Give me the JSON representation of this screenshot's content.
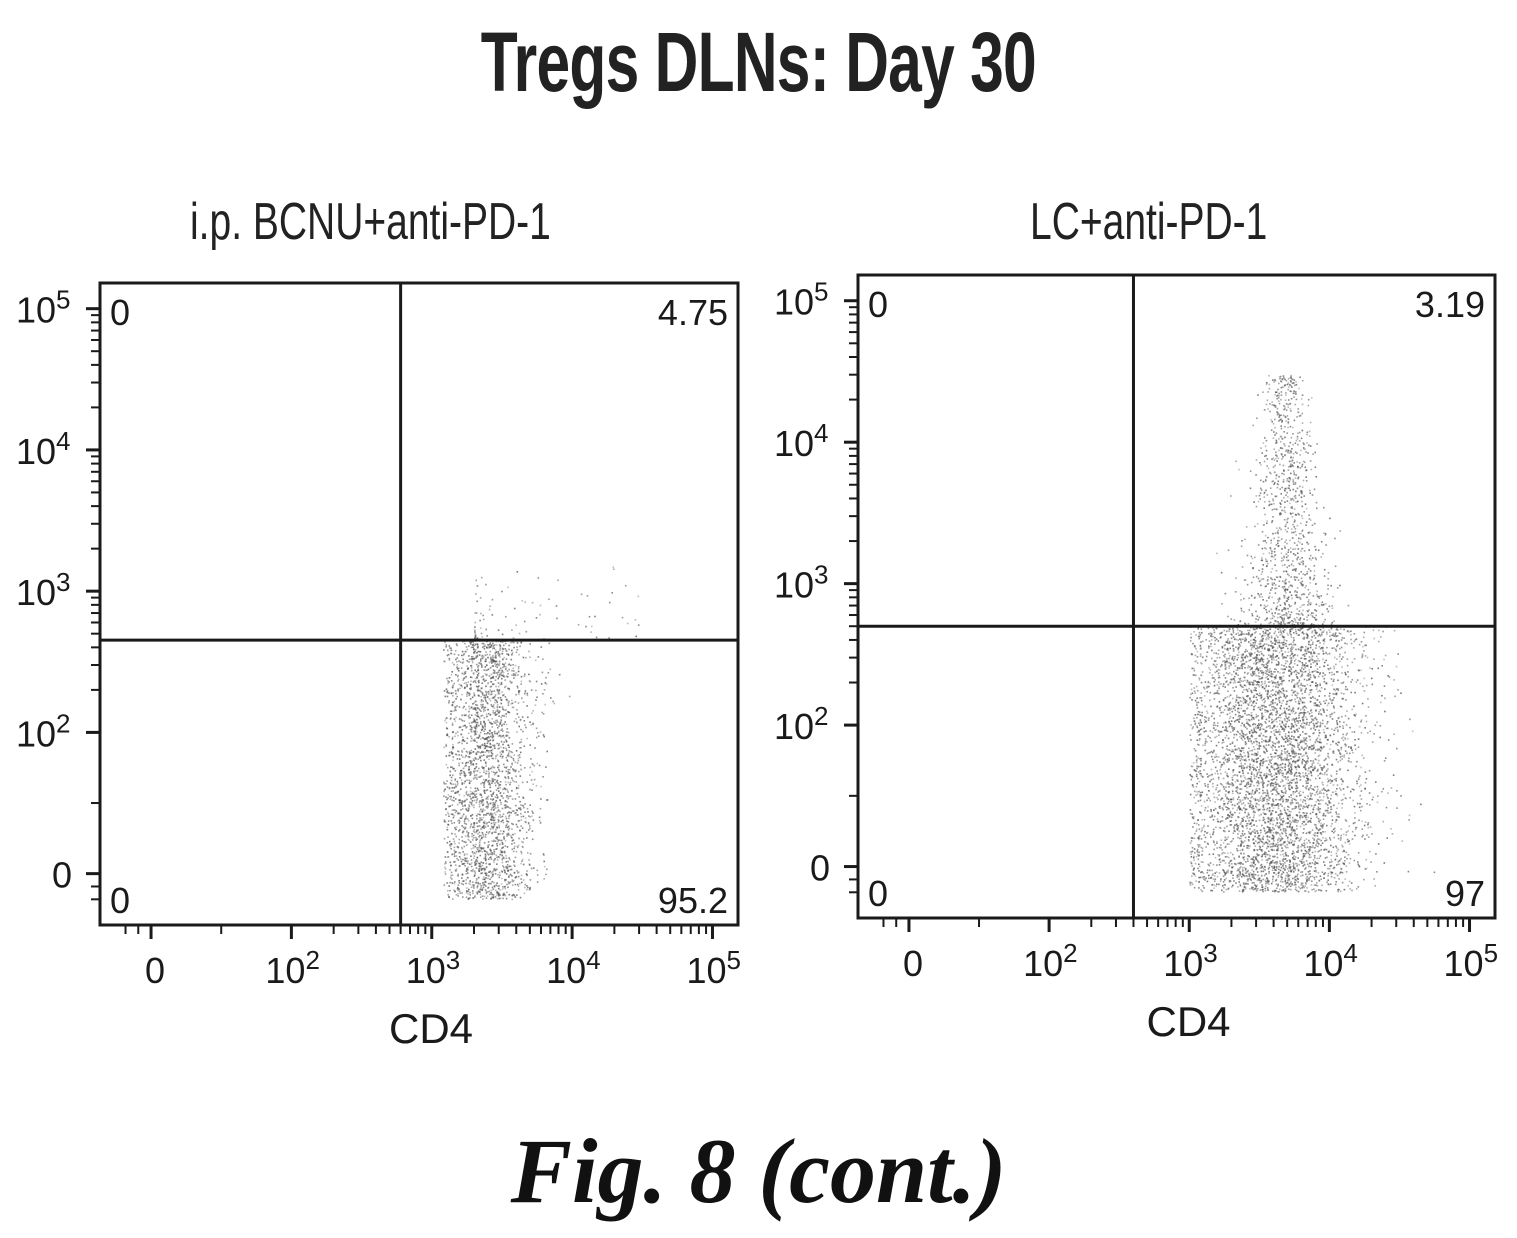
{
  "figure": {
    "title": "Tregs DLNs: Day 30",
    "caption": "Fig. 8 (cont.)"
  },
  "chart_data": [
    {
      "type": "scatter",
      "subtype": "flow-cytometry-quadrant-dot-plot",
      "title": "i.p. BCNU+anti-PD-1",
      "xlabel": "CD4",
      "ylabel": "",
      "x_scale": "biexponential (logicle)",
      "y_scale": "biexponential (logicle)",
      "x_ticks": [
        {
          "base": "0",
          "exp": ""
        },
        {
          "base": "10",
          "exp": "2"
        },
        {
          "base": "10",
          "exp": "3"
        },
        {
          "base": "10",
          "exp": "4"
        },
        {
          "base": "10",
          "exp": "5"
        }
      ],
      "y_ticks": [
        {
          "base": "0",
          "exp": ""
        },
        {
          "base": "10",
          "exp": "2"
        },
        {
          "base": "10",
          "exp": "3"
        },
        {
          "base": "10",
          "exp": "4"
        },
        {
          "base": "10",
          "exp": "5"
        }
      ],
      "quadrant_gate": {
        "x": 600,
        "y": 450
      },
      "quadrants": {
        "upper_left": "0",
        "upper_right": "4.75",
        "lower_left": "0",
        "lower_right": "95.2"
      },
      "populations": [
        {
          "x_range": [
            1200,
            6000
          ],
          "y_range": [
            -150,
            450
          ],
          "density": "high",
          "description": "CD4+ main population, lower-right"
        },
        {
          "x_range": [
            2000,
            30000
          ],
          "y_range": [
            450,
            1500
          ],
          "density": "sparse",
          "description": "few events above gate"
        }
      ]
    },
    {
      "type": "scatter",
      "subtype": "flow-cytometry-quadrant-dot-plot",
      "title": "LC+anti-PD-1",
      "xlabel": "CD4",
      "ylabel": "",
      "x_scale": "biexponential (logicle)",
      "y_scale": "biexponential (logicle)",
      "x_ticks": [
        {
          "base": "0",
          "exp": ""
        },
        {
          "base": "10",
          "exp": "2"
        },
        {
          "base": "10",
          "exp": "3"
        },
        {
          "base": "10",
          "exp": "4"
        },
        {
          "base": "10",
          "exp": "5"
        }
      ],
      "y_ticks": [
        {
          "base": "0",
          "exp": ""
        },
        {
          "base": "10",
          "exp": "2"
        },
        {
          "base": "10",
          "exp": "3"
        },
        {
          "base": "10",
          "exp": "4"
        },
        {
          "base": "10",
          "exp": "5"
        }
      ],
      "quadrant_gate": {
        "x": 400,
        "y": 500
      },
      "quadrants": {
        "upper_left": "0",
        "upper_right": "3.19",
        "lower_left": "0",
        "lower_right": "97"
      },
      "populations": [
        {
          "x_range": [
            1000,
            20000
          ],
          "y_range": [
            -150,
            500
          ],
          "density": "very high",
          "description": "CD4+ main population, lower-right"
        },
        {
          "x_range": [
            1500,
            10000
          ],
          "y_range": [
            500,
            30000
          ],
          "density": "moderate",
          "description": "diffuse tail extending upward"
        }
      ]
    }
  ],
  "colors": {
    "axis": "#1a1a1a",
    "dots": "#555555",
    "text": "#1a1a1a"
  }
}
